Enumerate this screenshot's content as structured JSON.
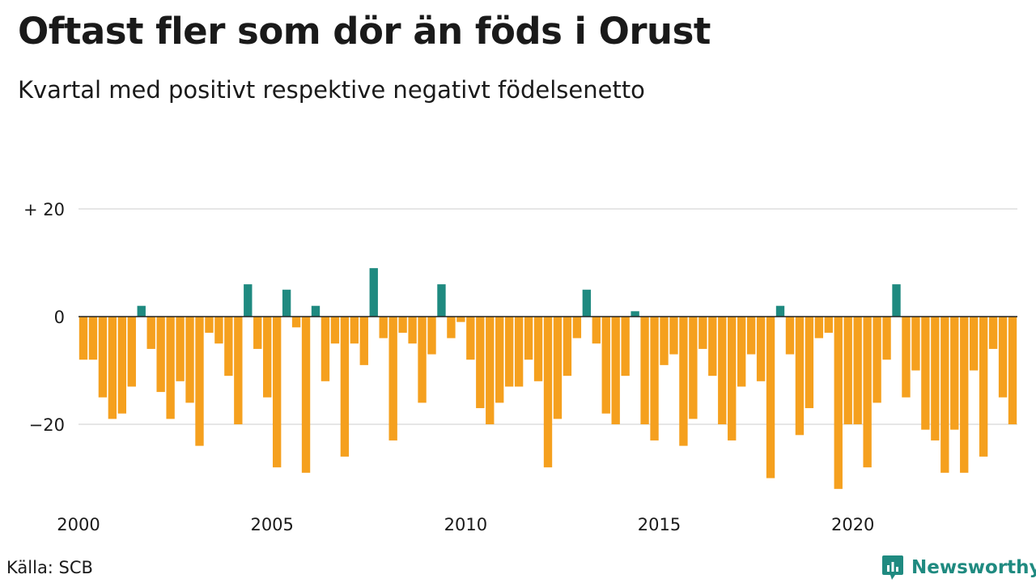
{
  "title": "Oftast fler som dör än föds i Orust",
  "subtitle": "Kvartal med positivt respektive negativt födelsenetto",
  "source": "Källa: SCB",
  "brand": {
    "name": "Newsworthy",
    "icon": "newsworthy-logo-icon",
    "color": "#1f8a80"
  },
  "chart_data": {
    "type": "bar",
    "title": "Oftast fler som dör än föds i Orust",
    "subtitle": "Kvartal med positivt respektive negativt födelsenetto",
    "xlabel": "",
    "ylabel": "",
    "x_start_year": 2000,
    "periods_per_year": 4,
    "ylim": [
      -34,
      20
    ],
    "y_ticks": [
      20,
      0,
      -20
    ],
    "y_tick_labels": [
      "+ 20",
      "0",
      "−20"
    ],
    "x_ticks": [
      2000,
      2005,
      2010,
      2015,
      2020
    ],
    "x_tick_labels": [
      "2000",
      "2005",
      "2010",
      "2015",
      "2020"
    ],
    "grid": true,
    "colors": {
      "positive": "#1f8a80",
      "negative": "#f5a01e",
      "grid": "#dddddd",
      "zero_line": "#222222"
    },
    "values": [
      -8,
      -8,
      -15,
      -19,
      -18,
      -13,
      2,
      -6,
      -14,
      -19,
      -12,
      -16,
      -24,
      -3,
      -5,
      -11,
      -20,
      6,
      -6,
      -15,
      -28,
      5,
      -2,
      -29,
      2,
      -12,
      -5,
      -26,
      -5,
      -9,
      9,
      -4,
      -23,
      -3,
      -5,
      -16,
      -7,
      6,
      -4,
      -1,
      -8,
      -17,
      -20,
      -16,
      -13,
      -13,
      -8,
      -12,
      -28,
      -19,
      -11,
      -4,
      5,
      -5,
      -18,
      -20,
      -11,
      1,
      -20,
      -23,
      -9,
      -7,
      -24,
      -19,
      -6,
      -11,
      -20,
      -23,
      -13,
      -7,
      -12,
      -30,
      2,
      -7,
      -22,
      -17,
      -4,
      -3,
      -32,
      -20,
      -20,
      -28,
      -16,
      -8,
      6,
      -15,
      -10,
      -21,
      -23,
      -29,
      -21,
      -29,
      -10,
      -26,
      -6,
      -15,
      -20
    ]
  }
}
